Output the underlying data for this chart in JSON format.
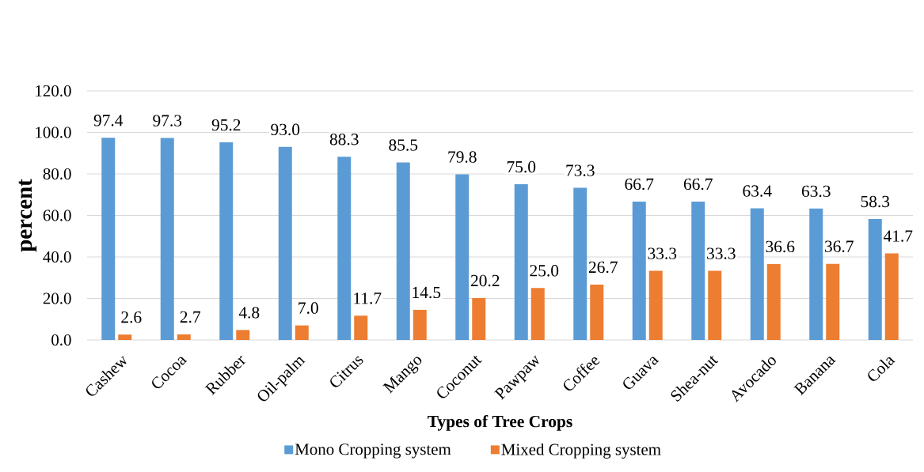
{
  "chart_data": {
    "type": "bar",
    "xlabel": "Types of Tree Crops",
    "ylabel": "percent",
    "categories": [
      "Cashew",
      "Cocoa",
      "Rubber",
      "Oil-palm",
      "Citrus",
      "Mango",
      "Coconut",
      "Pawpaw",
      "Coffee",
      "Guava",
      "Shea-nut",
      "Avocado",
      "Banana",
      "Cola"
    ],
    "series": [
      {
        "name": "Mono Cropping system",
        "color": "#5b9bd5",
        "values": [
          97.4,
          97.3,
          95.2,
          93.0,
          88.3,
          85.5,
          79.8,
          75.0,
          73.3,
          66.7,
          66.7,
          63.4,
          63.3,
          58.3
        ],
        "value_labels": [
          "97.4",
          "97.3",
          "95.2",
          "93.0",
          "88.3",
          "85.5",
          "79.8",
          "75.0",
          "73.3",
          "66.7",
          "66.7",
          "63.4",
          "63.3",
          "58.3"
        ]
      },
      {
        "name": "Mixed Cropping system",
        "color": "#ed7d31",
        "values": [
          2.6,
          2.7,
          4.8,
          7.0,
          11.7,
          14.5,
          20.2,
          25.0,
          26.7,
          33.3,
          33.3,
          36.6,
          36.7,
          41.7
        ],
        "value_labels": [
          "2.6",
          "2.7",
          "4.8",
          "7.0",
          "11.7",
          "14.5",
          "20.2",
          "25.0",
          "26.7",
          "33.3",
          "33.3",
          "36.6",
          "36.7",
          "41.7"
        ]
      }
    ],
    "ylim": [
      0,
      120
    ],
    "yticks": [
      {
        "value": 0,
        "label": "0.0"
      },
      {
        "value": 20,
        "label": "20.0"
      },
      {
        "value": 40,
        "label": "40.0"
      },
      {
        "value": 60,
        "label": "60.0"
      },
      {
        "value": 80,
        "label": "80.0"
      },
      {
        "value": 100,
        "label": "100.0"
      },
      {
        "value": 120,
        "label": "120.0"
      }
    ],
    "grid": "y",
    "legend": "bottom"
  }
}
